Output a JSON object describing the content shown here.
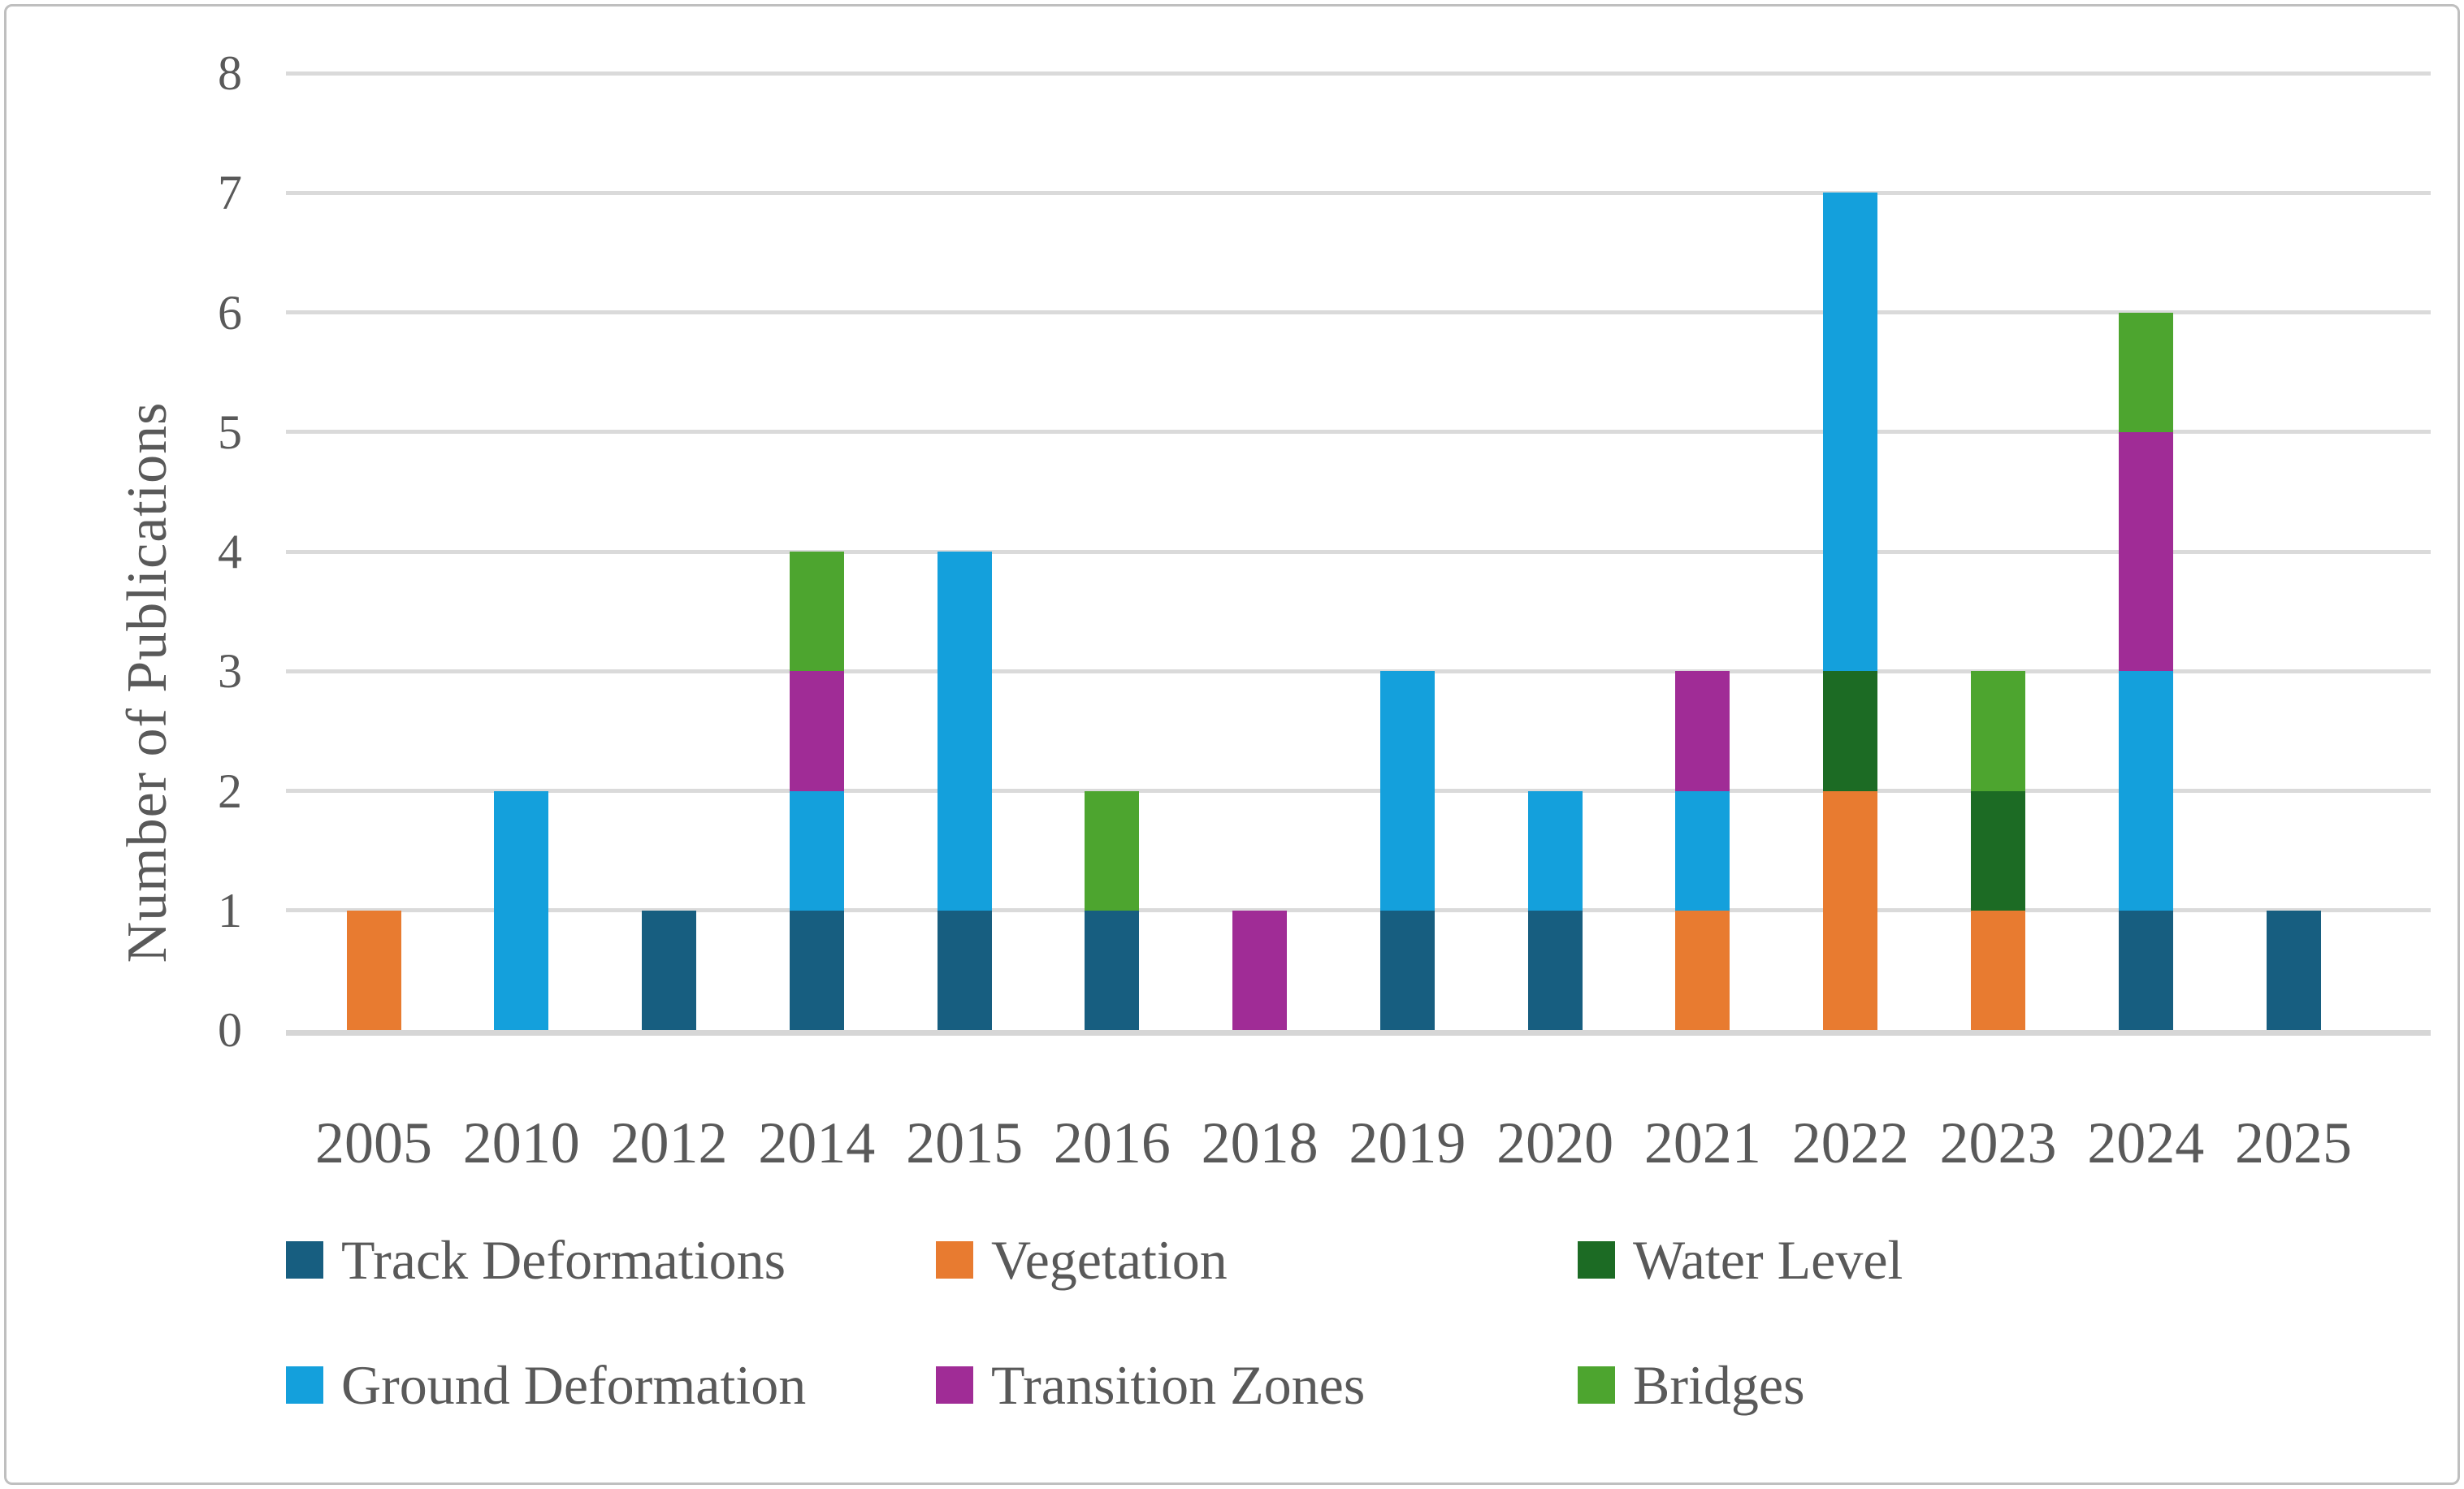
{
  "chart_data": {
    "type": "bar",
    "stacked": true,
    "title": "",
    "xlabel": "",
    "ylabel": "Number of Publications",
    "ylim": [
      0,
      8
    ],
    "yticks": [
      0,
      1,
      2,
      3,
      4,
      5,
      6,
      7,
      8
    ],
    "grid": true,
    "legend_position": "bottom",
    "categories": [
      "2005",
      "2010",
      "2012",
      "2014",
      "2015",
      "2016",
      "2018",
      "2019",
      "2020",
      "2021",
      "2022",
      "2023",
      "2024",
      "2025"
    ],
    "series": [
      {
        "name": "Track Deformations",
        "color": "#175E80",
        "values": [
          0,
          0,
          1,
          1,
          1,
          1,
          0,
          1,
          1,
          0,
          0,
          0,
          1,
          1
        ]
      },
      {
        "name": "Vegetation",
        "color": "#E87B30",
        "values": [
          1,
          0,
          0,
          0,
          0,
          0,
          0,
          0,
          0,
          1,
          2,
          1,
          0,
          0
        ]
      },
      {
        "name": "Water Level",
        "color": "#1C6B24",
        "values": [
          0,
          0,
          0,
          0,
          0,
          0,
          0,
          0,
          0,
          0,
          1,
          1,
          0,
          0
        ]
      },
      {
        "name": "Ground Deformation",
        "color": "#14A0DC",
        "values": [
          0,
          2,
          0,
          1,
          3,
          0,
          0,
          2,
          1,
          1,
          4,
          0,
          2,
          0
        ]
      },
      {
        "name": "Transition Zones",
        "color": "#A02C96",
        "values": [
          0,
          0,
          0,
          1,
          0,
          0,
          1,
          0,
          0,
          1,
          0,
          0,
          2,
          0
        ]
      },
      {
        "name": "Bridges",
        "color": "#4DA52F",
        "values": [
          0,
          0,
          0,
          1,
          0,
          1,
          0,
          0,
          0,
          0,
          0,
          1,
          1,
          0
        ]
      }
    ],
    "totals_by_category": [
      1,
      2,
      1,
      4,
      4,
      2,
      1,
      3,
      2,
      3,
      7,
      3,
      6,
      1
    ]
  },
  "legend": {
    "rows": [
      [
        0,
        1,
        2
      ],
      [
        3,
        4,
        5
      ]
    ]
  },
  "appearance": {
    "text_color": "#595959",
    "gridline_color": "#DADADA",
    "axis_line_color": "#D6D6D6",
    "border_color": "#BFBFBF",
    "background_color": "#FFFFFF"
  }
}
